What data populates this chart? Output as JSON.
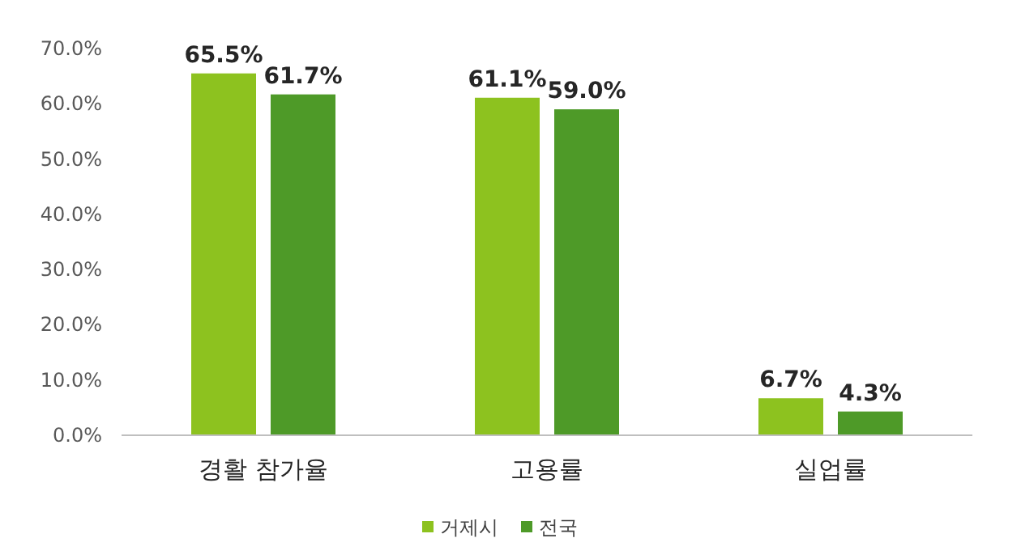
{
  "chart_data": {
    "type": "bar",
    "categories": [
      "경활 참가율",
      "고용률",
      "실업률"
    ],
    "series": [
      {
        "name": "거제시",
        "color": "#8dc21f",
        "values": [
          65.5,
          61.1,
          6.7
        ],
        "value_labels": [
          "65.5%",
          "61.1%",
          "6.7%"
        ]
      },
      {
        "name": "전국",
        "color": "#4e9a28",
        "values": [
          61.7,
          59.0,
          4.3
        ],
        "value_labels": [
          "61.7%",
          "59.0%",
          "4.3%"
        ]
      }
    ],
    "ylim": [
      0,
      70
    ],
    "yticks": [
      {
        "value": 0,
        "label": "0.0%"
      },
      {
        "value": 10,
        "label": "10.0%"
      },
      {
        "value": 20,
        "label": "20.0%"
      },
      {
        "value": 30,
        "label": "30.0%"
      },
      {
        "value": 40,
        "label": "40.0%"
      },
      {
        "value": 50,
        "label": "50.0%"
      },
      {
        "value": 60,
        "label": "60.0%"
      },
      {
        "value": 70,
        "label": "70.0%"
      }
    ],
    "grid": false,
    "legend": "bottom"
  }
}
